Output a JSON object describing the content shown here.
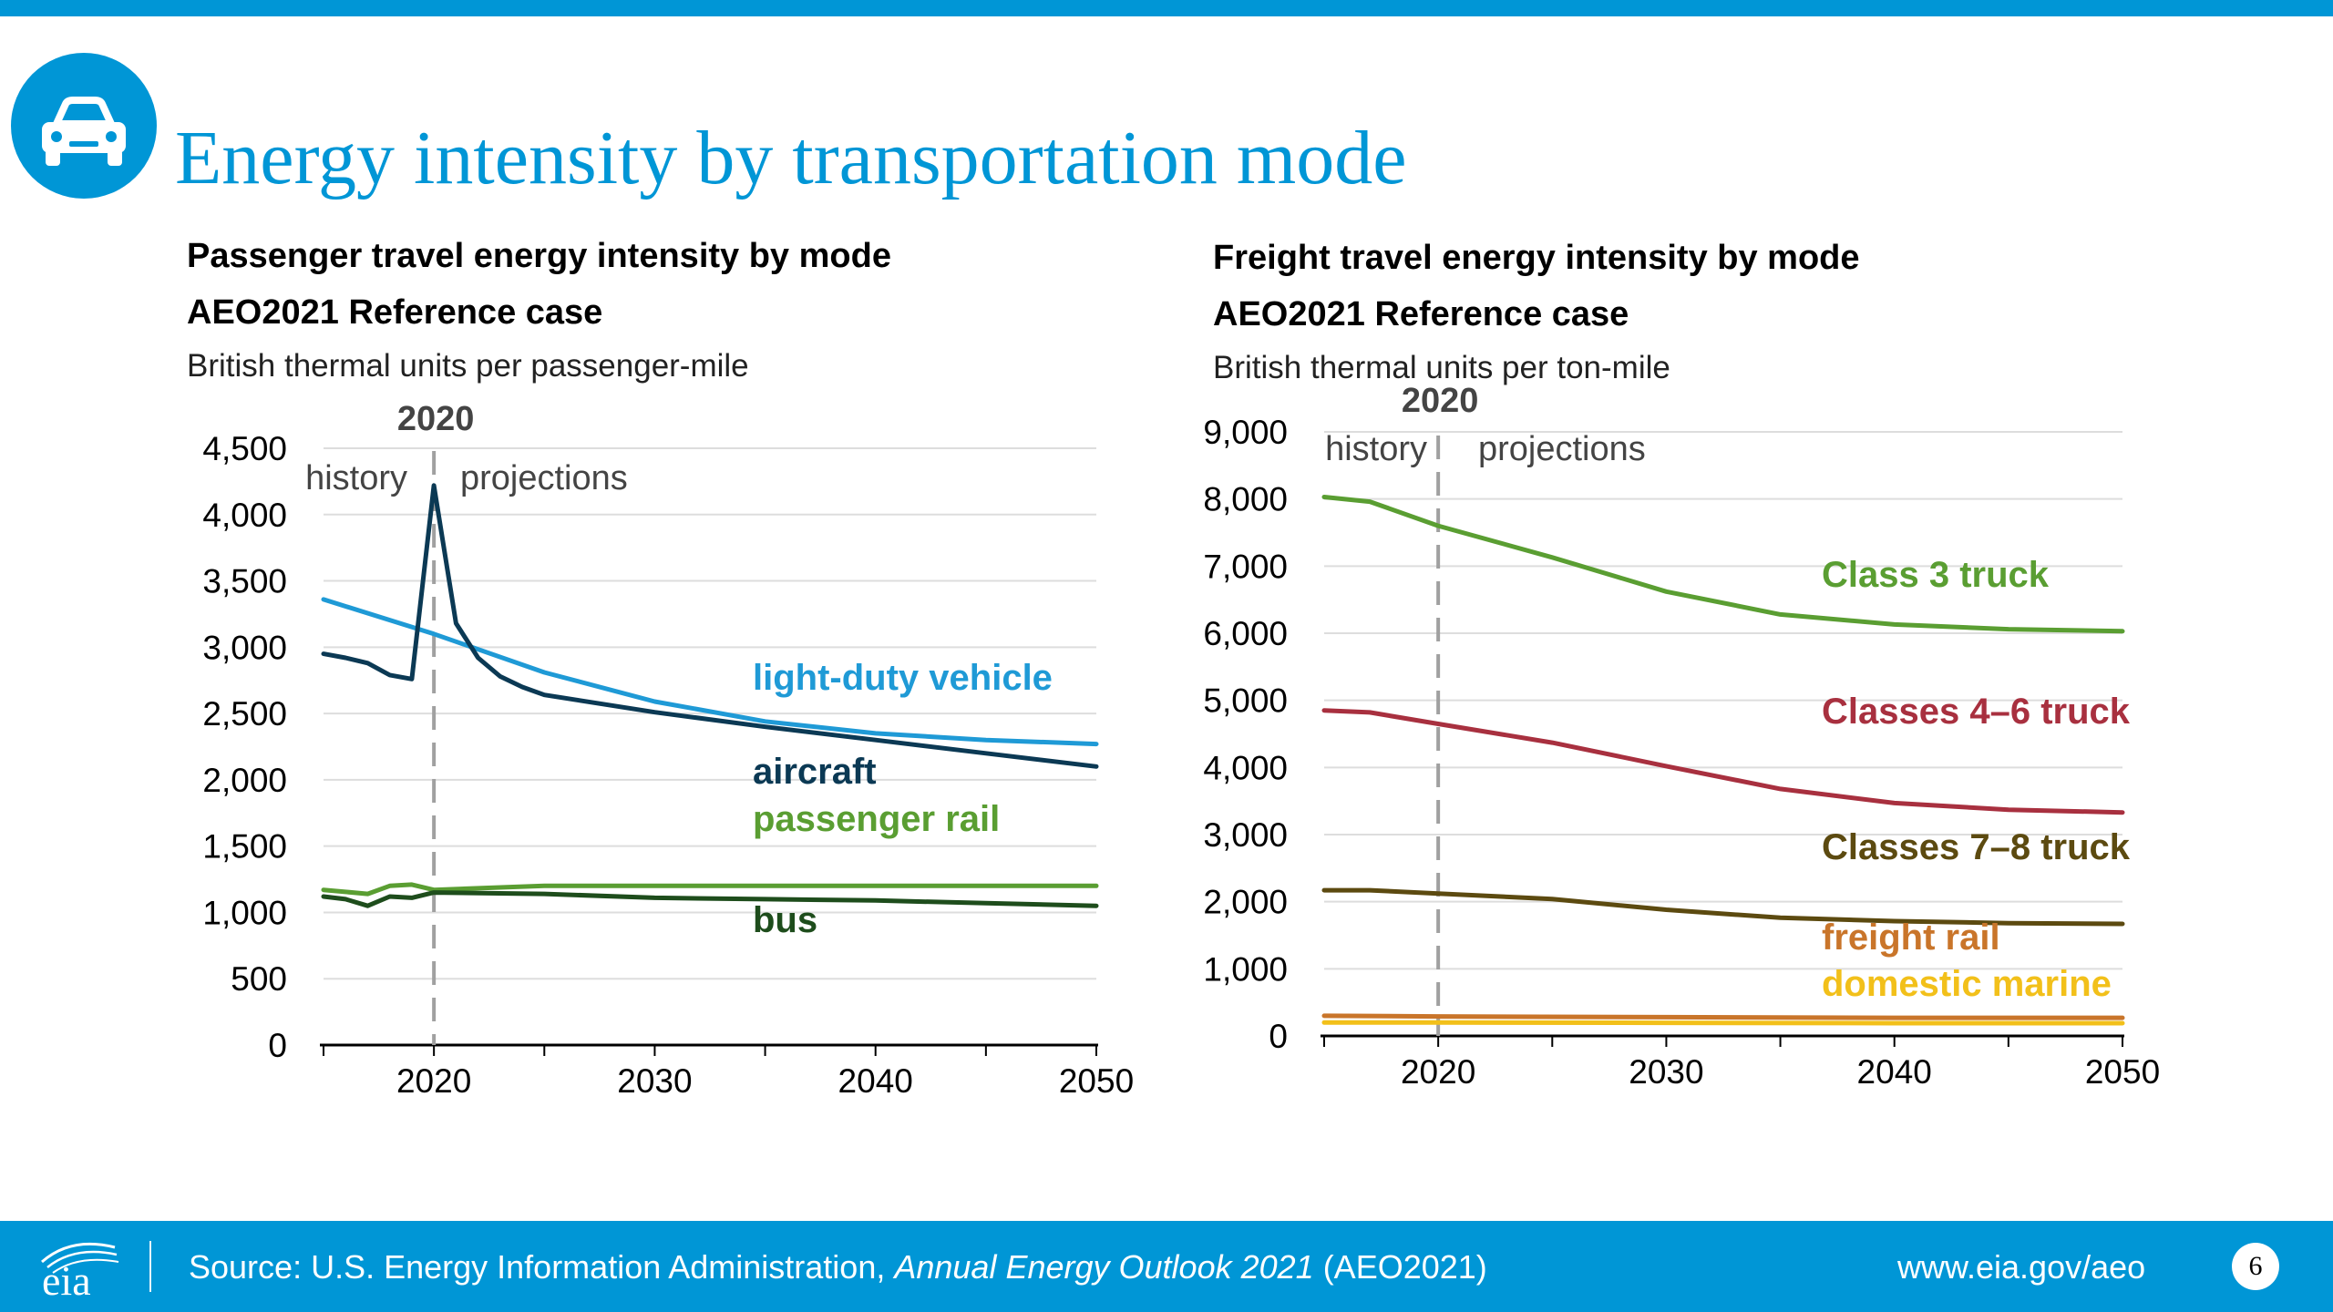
{
  "slide": {
    "title": "Energy intensity by transportation mode",
    "icon": "car-icon",
    "accent_color": "#0096d6"
  },
  "footer": {
    "source_prefix": "Source: U.S. Energy Information Administration, ",
    "source_italic": "Annual Energy Outlook 2021",
    "source_suffix": " (AEO2021)",
    "url": "www.eia.gov/aeo",
    "page_number": "6",
    "logo_text": "eia"
  },
  "chart_data": [
    {
      "type": "line",
      "title": "Passenger travel energy intensity by mode",
      "subtitle": "AEO2021 Reference case",
      "ylabel": "British thermal units per passenger-mile",
      "xlim": [
        2015,
        2050
      ],
      "ylim": [
        0,
        4500
      ],
      "yticks": [
        0,
        500,
        1000,
        1500,
        2000,
        2500,
        3000,
        3500,
        4000,
        4500
      ],
      "yticklabels": [
        "0",
        "500",
        "1,000",
        "1,500",
        "2,000",
        "2,500",
        "3,000",
        "3,500",
        "4,000",
        "4,500"
      ],
      "xticks": [
        2020,
        2030,
        2040,
        2050
      ],
      "xticklabels": [
        "2020",
        "2030",
        "2040",
        "2050"
      ],
      "grid": true,
      "divider": {
        "year": 2020,
        "label": "2020",
        "left_label": "history",
        "right_label": "projections"
      },
      "series": [
        {
          "name": "light-duty vehicle",
          "color": "#1f9ad6",
          "x": [
            2015,
            2020,
            2025,
            2030,
            2035,
            2040,
            2045,
            2050
          ],
          "values": [
            3360,
            3100,
            2810,
            2590,
            2440,
            2350,
            2300,
            2270
          ]
        },
        {
          "name": "aircraft",
          "color": "#0b3954",
          "x": [
            2015,
            2016,
            2017,
            2018,
            2019,
            2020,
            2021,
            2022,
            2023,
            2024,
            2025,
            2030,
            2035,
            2040,
            2045,
            2050
          ],
          "values": [
            2950,
            2920,
            2880,
            2790,
            2760,
            4220,
            3180,
            2920,
            2780,
            2700,
            2640,
            2510,
            2400,
            2300,
            2200,
            2100
          ]
        },
        {
          "name": "passenger rail",
          "color": "#5a9e32",
          "x": [
            2015,
            2017,
            2018,
            2019,
            2020,
            2025,
            2030,
            2035,
            2040,
            2045,
            2050
          ],
          "values": [
            1170,
            1140,
            1200,
            1210,
            1170,
            1200,
            1200,
            1200,
            1200,
            1200,
            1200
          ]
        },
        {
          "name": "bus",
          "color": "#1e4d1c",
          "x": [
            2015,
            2016,
            2017,
            2018,
            2019,
            2020,
            2025,
            2030,
            2035,
            2040,
            2045,
            2050
          ],
          "values": [
            1120,
            1100,
            1050,
            1120,
            1110,
            1150,
            1140,
            1110,
            1100,
            1090,
            1070,
            1050
          ]
        }
      ]
    },
    {
      "type": "line",
      "title": "Freight travel energy intensity by mode",
      "subtitle": "AEO2021 Reference case",
      "ylabel": "British thermal units per ton-mile",
      "xlim": [
        2015,
        2050
      ],
      "ylim": [
        0,
        9000
      ],
      "yticks": [
        0,
        1000,
        2000,
        3000,
        4000,
        5000,
        6000,
        7000,
        8000,
        9000
      ],
      "yticklabels": [
        "0",
        "1,000",
        "2,000",
        "3,000",
        "4,000",
        "5,000",
        "6,000",
        "7,000",
        "8,000",
        "9,000"
      ],
      "xticks": [
        2020,
        2030,
        2040,
        2050
      ],
      "xticklabels": [
        "2020",
        "2030",
        "2040",
        "2050"
      ],
      "grid": true,
      "divider": {
        "year": 2020,
        "label": "2020",
        "left_label": "history",
        "right_label": "projections"
      },
      "series": [
        {
          "name": "Class 3 truck",
          "color": "#5a9e32",
          "x": [
            2015,
            2017,
            2020,
            2025,
            2030,
            2035,
            2040,
            2045,
            2050
          ],
          "values": [
            8030,
            7960,
            7600,
            7130,
            6620,
            6280,
            6130,
            6060,
            6030
          ]
        },
        {
          "name": "Classes 4–6 truck",
          "color": "#a8303f",
          "x": [
            2015,
            2017,
            2020,
            2025,
            2030,
            2035,
            2040,
            2045,
            2050
          ],
          "values": [
            4850,
            4820,
            4650,
            4370,
            4020,
            3680,
            3470,
            3370,
            3330
          ]
        },
        {
          "name": "Classes 7–8 truck",
          "color": "#5c4a10",
          "x": [
            2015,
            2017,
            2020,
            2025,
            2030,
            2035,
            2040,
            2045,
            2050
          ],
          "values": [
            2170,
            2170,
            2120,
            2040,
            1880,
            1760,
            1710,
            1680,
            1670
          ]
        },
        {
          "name": "freight rail",
          "color": "#c9752a",
          "x": [
            2015,
            2020,
            2030,
            2040,
            2050
          ],
          "values": [
            300,
            290,
            280,
            270,
            270
          ]
        },
        {
          "name": "domestic marine",
          "color": "#f2c01a",
          "x": [
            2015,
            2020,
            2030,
            2040,
            2050
          ],
          "values": [
            200,
            200,
            195,
            190,
            190
          ]
        }
      ]
    }
  ]
}
